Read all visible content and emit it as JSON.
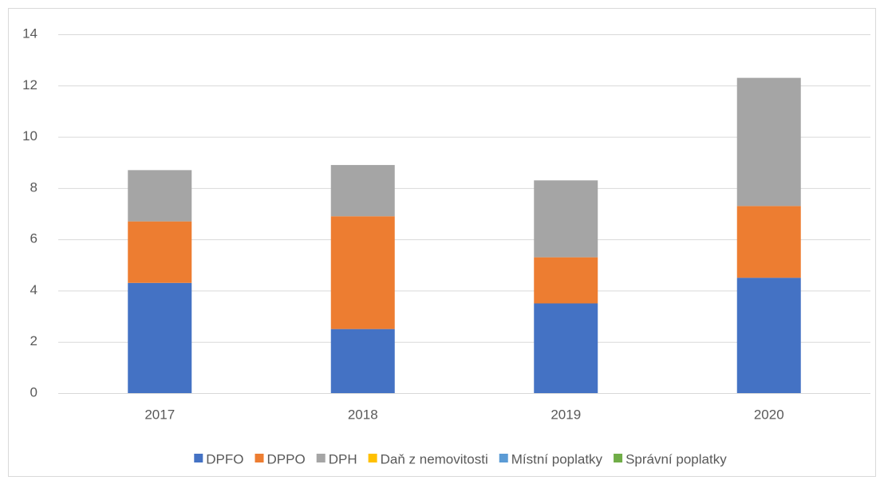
{
  "chart_data": {
    "type": "stacked_bar",
    "categories": [
      "2017",
      "2018",
      "2019",
      "2020"
    ],
    "series": [
      {
        "name": "DPFO",
        "color": "#4472c4",
        "values": [
          4.3,
          2.5,
          3.5,
          4.5
        ]
      },
      {
        "name": "DPPO",
        "color": "#ed7d31",
        "values": [
          2.4,
          4.4,
          1.8,
          2.8
        ]
      },
      {
        "name": "DPH",
        "color": "#a5a5a5",
        "values": [
          2.0,
          2.0,
          3.0,
          5.0
        ]
      },
      {
        "name": "Daň z nemovitosti",
        "color": "#ffc000",
        "values": [
          0,
          0,
          0,
          0
        ]
      },
      {
        "name": "Místní poplatky",
        "color": "#5b9bd5",
        "values": [
          0,
          0,
          0,
          0
        ]
      },
      {
        "name": "Správní poplatky",
        "color": "#70ad47",
        "values": [
          0,
          0,
          0,
          0
        ]
      }
    ],
    "ylim": [
      0,
      14
    ],
    "yticks": [
      0,
      2,
      4,
      6,
      8,
      10,
      12,
      14
    ],
    "grid": true,
    "legend": "bottom"
  }
}
